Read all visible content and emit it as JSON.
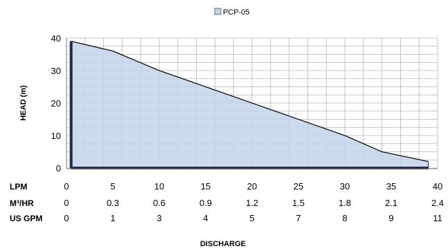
{
  "chart_data": {
    "type": "area",
    "series": [
      {
        "name": "PCP-05",
        "x": [
          0.5,
          5,
          10,
          15,
          20,
          25,
          30,
          34,
          39
        ],
        "y": [
          39,
          36,
          30,
          25,
          20,
          15,
          10,
          5,
          2
        ]
      }
    ],
    "xlim": [
      0,
      40
    ],
    "ylim": [
      0,
      40
    ],
    "ylabel": "HEAD (m)",
    "xlabel": "DISCHARGE",
    "y_ticks": [
      "0",
      "10",
      "20",
      "30",
      "40"
    ],
    "x_rows": [
      {
        "label": "LPM",
        "ticks": [
          "0",
          "5",
          "10",
          "15",
          "20",
          "25",
          "30",
          "35",
          "40"
        ]
      },
      {
        "label": "M³/HR",
        "ticks": [
          "0",
          "0.3",
          "0.6",
          "0.9",
          "1.2",
          "1.5",
          "1.8",
          "2.1",
          "2.4"
        ]
      },
      {
        "label": "US GPM",
        "ticks": [
          "0",
          "1",
          "3",
          "4",
          "5",
          "7",
          "8",
          "9",
          "11"
        ]
      }
    ],
    "grid": true,
    "legend_position": "top-center",
    "colors": {
      "fill": "#c3d3ea",
      "line": "#1f1f1f",
      "grid": "#b4b4b4",
      "axis": "#1f2a4d"
    }
  }
}
